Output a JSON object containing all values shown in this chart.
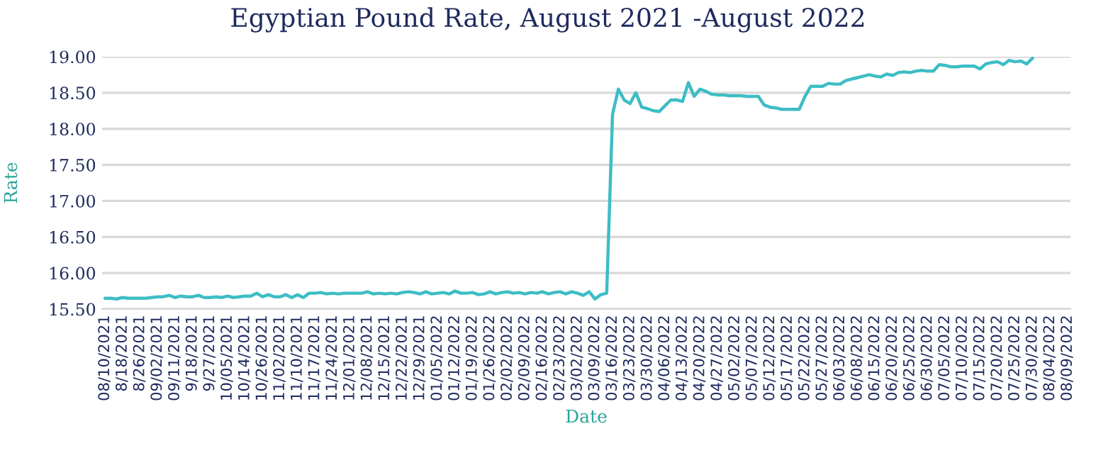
{
  "chart_data": {
    "type": "line",
    "title": "Egyptian Pound Rate, August 2021 -August 2022",
    "xlabel": "Date",
    "ylabel": "Rate",
    "categories": [
      "08/10/2021",
      null,
      null,
      "8/18/2021",
      null,
      null,
      "8/26/2021",
      null,
      null,
      "09/02/2021",
      null,
      null,
      "09/11/2021",
      null,
      null,
      "9/18/2021",
      null,
      null,
      "9/27/2021",
      null,
      null,
      "10/05/2021",
      null,
      null,
      "10/14/2021",
      null,
      null,
      "10/26/2021",
      null,
      null,
      "11/02/2021",
      null,
      null,
      "11/10/2021",
      null,
      null,
      "11/17/2021",
      null,
      null,
      "11/24/2021",
      null,
      null,
      "12/01/2021",
      null,
      null,
      "12/08/2021",
      null,
      null,
      "12/15/2021",
      null,
      null,
      "12/22/2021",
      null,
      null,
      "12/29/2021",
      null,
      null,
      "01/05/2022",
      null,
      null,
      "01/12/2022",
      null,
      null,
      "01/19/2022",
      null,
      null,
      "01/26/2022",
      null,
      null,
      "02/02/2022",
      null,
      null,
      "02/09/2022",
      null,
      null,
      "02/16/2022",
      null,
      null,
      "02/23/2022",
      null,
      null,
      "03/02/2022",
      null,
      null,
      "03/09/2022",
      null,
      null,
      "03/16/2022",
      null,
      null,
      "03/23/2022",
      null,
      null,
      "03/30/2022",
      null,
      null,
      "04/06/2022",
      null,
      null,
      "04/13/2022",
      null,
      null,
      "04/20/2022",
      null,
      null,
      "04/27/2022",
      null,
      null,
      "05/02/2022",
      null,
      null,
      "05/07/2022",
      null,
      null,
      "05/12/2022",
      null,
      null,
      "05/17/2022",
      null,
      null,
      "05/22/2022",
      null,
      null,
      "05/27/2022",
      null,
      null,
      "06/03/2022",
      null,
      null,
      "06/08/2022",
      null,
      null,
      "06/15/2022",
      null,
      null,
      "06/20/2022",
      null,
      null,
      "06/25/2022",
      null,
      null,
      "06/30/2022",
      null,
      null,
      "07/05/2022",
      null,
      null,
      "07/10/2022",
      null,
      null,
      "07/15/2022",
      null,
      null,
      "07/20/2022",
      null,
      null,
      "07/25/2022",
      null,
      null,
      "07/30/2022",
      null,
      null,
      "08/04/2022",
      null,
      null,
      "08/09/2022"
    ],
    "series": [
      {
        "color": "#3dbdc4",
        "values": [
          15.65,
          15.65,
          15.64,
          15.66,
          15.65,
          15.65,
          15.65,
          15.65,
          15.66,
          15.67,
          15.67,
          15.69,
          15.66,
          15.68,
          15.67,
          15.67,
          15.69,
          15.66,
          15.66,
          15.67,
          15.66,
          15.68,
          15.66,
          15.67,
          15.68,
          15.68,
          15.72,
          15.67,
          15.7,
          15.67,
          15.67,
          15.7,
          15.66,
          15.7,
          15.66,
          15.72,
          15.72,
          15.73,
          15.71,
          15.72,
          15.71,
          15.72,
          15.72,
          15.72,
          15.72,
          15.74,
          15.71,
          15.72,
          15.71,
          15.72,
          15.71,
          15.73,
          15.74,
          15.73,
          15.71,
          15.74,
          15.71,
          15.72,
          15.73,
          15.71,
          15.75,
          15.72,
          15.72,
          15.73,
          15.7,
          15.71,
          15.74,
          15.71,
          15.73,
          15.74,
          15.72,
          15.73,
          15.71,
          15.73,
          15.72,
          15.74,
          15.71,
          15.73,
          15.74,
          15.71,
          15.74,
          15.72,
          15.69,
          15.74,
          15.64,
          15.7,
          15.72,
          18.2,
          18.55,
          18.4,
          18.35,
          18.5,
          18.3,
          18.28,
          18.25,
          18.24,
          18.32,
          18.4,
          18.4,
          18.38,
          18.64,
          18.45,
          18.55,
          18.52,
          18.48,
          18.47,
          18.47,
          18.46,
          18.46,
          18.46,
          18.45,
          18.45,
          18.45,
          18.33,
          18.3,
          18.29,
          18.27,
          18.27,
          18.27,
          18.27,
          18.45,
          18.59,
          18.59,
          18.59,
          18.63,
          18.62,
          18.62,
          18.67,
          18.69,
          18.71,
          18.73,
          18.75,
          18.73,
          18.72,
          18.76,
          18.74,
          18.78,
          18.79,
          18.78,
          18.8,
          18.81,
          18.8,
          18.8,
          18.89,
          18.88,
          18.86,
          18.86,
          18.87,
          18.87,
          18.87,
          18.83,
          18.9,
          18.92,
          18.93,
          18.89,
          18.95,
          18.93,
          18.94,
          18.9,
          18.98,
          null,
          null,
          null,
          null,
          null,
          null
        ]
      }
    ],
    "ylim": [
      15.5,
      19.0
    ],
    "yticks": [
      {
        "value": 15.5,
        "label": "15.50"
      },
      {
        "value": 16.0,
        "label": "16.00"
      },
      {
        "value": 16.5,
        "label": "16.50"
      },
      {
        "value": 17.0,
        "label": "17.00"
      },
      {
        "value": 17.5,
        "label": "17.50"
      },
      {
        "value": 18.0,
        "label": "18.00"
      },
      {
        "value": 18.5,
        "label": "18.50"
      },
      {
        "value": 19.0,
        "label": "19.00"
      }
    ],
    "grid": "y",
    "legend": false,
    "marker": "none",
    "line_style": "solid"
  }
}
